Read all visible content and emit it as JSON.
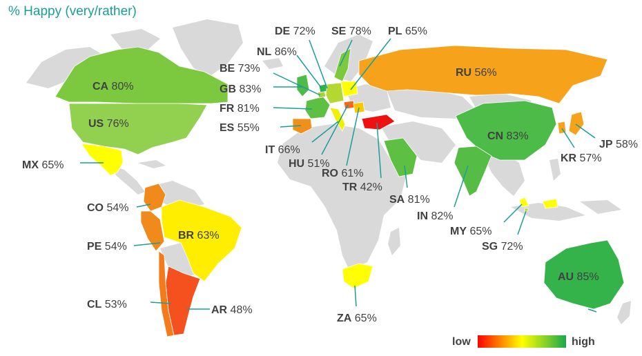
{
  "title": "% Happy (very/rather)",
  "legend": {
    "low_label": "low",
    "high_label": "high",
    "low_color": "#ff0000",
    "mid_color": "#ffff00",
    "high_color": "#1aa84b"
  },
  "colors": {
    "land": "#d9d9d9",
    "leader": "#1a9e97",
    "text": "#404040"
  },
  "countries": [
    {
      "code": "CA",
      "value": "80%",
      "color": "#7cc940"
    },
    {
      "code": "US",
      "value": "76%",
      "color": "#92d050"
    },
    {
      "code": "MX",
      "value": "65%",
      "color": "#ffff00"
    },
    {
      "code": "CO",
      "value": "54%",
      "color": "#f08a1a"
    },
    {
      "code": "PE",
      "value": "54%",
      "color": "#f08a1a"
    },
    {
      "code": "BR",
      "value": "63%",
      "color": "#ffee00"
    },
    {
      "code": "CL",
      "value": "53%",
      "color": "#f47a1a"
    },
    {
      "code": "AR",
      "value": "48%",
      "color": "#f4511e"
    },
    {
      "code": "DE",
      "value": "72%",
      "color": "#b4d832"
    },
    {
      "code": "SE",
      "value": "78%",
      "color": "#7cc940"
    },
    {
      "code": "PL",
      "value": "65%",
      "color": "#ffff00"
    },
    {
      "code": "NL",
      "value": "86%",
      "color": "#2db34a"
    },
    {
      "code": "BE",
      "value": "73%",
      "color": "#aad23a"
    },
    {
      "code": "GB",
      "value": "83%",
      "color": "#4cbb47"
    },
    {
      "code": "FR",
      "value": "81%",
      "color": "#5dc043"
    },
    {
      "code": "ES",
      "value": "55%",
      "color": "#f0901a"
    },
    {
      "code": "IT",
      "value": "66%",
      "color": "#f0f000"
    },
    {
      "code": "HU",
      "value": "51%",
      "color": "#f46a1a"
    },
    {
      "code": "RO",
      "value": "61%",
      "color": "#f8c800"
    },
    {
      "code": "TR",
      "value": "42%",
      "color": "#ee1111"
    },
    {
      "code": "RU",
      "value": "56%",
      "color": "#f7a21b"
    },
    {
      "code": "SA",
      "value": "81%",
      "color": "#5dc043"
    },
    {
      "code": "CN",
      "value": "83%",
      "color": "#4cbb47"
    },
    {
      "code": "IN",
      "value": "82%",
      "color": "#55bd45"
    },
    {
      "code": "JP",
      "value": "58%",
      "color": "#f7a21b"
    },
    {
      "code": "KR",
      "value": "57%",
      "color": "#f7a21b"
    },
    {
      "code": "MY",
      "value": "65%",
      "color": "#ffff00"
    },
    {
      "code": "SG",
      "value": "72%",
      "color": "#b4d832"
    },
    {
      "code": "AU",
      "value": "85%",
      "color": "#33b34a"
    },
    {
      "code": "ZA",
      "value": "65%",
      "color": "#ffff00"
    }
  ]
}
